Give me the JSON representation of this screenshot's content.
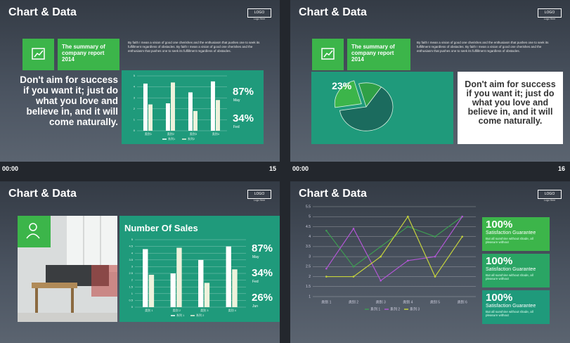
{
  "slides": [
    {
      "title": "Chart & Data",
      "logo": "LOGO",
      "logo_caption": "Logo Here",
      "summary": "The summary of company report 2014",
      "paragraph": "By faith I mean a vision of good one cherishes and the enthusiasm that pushes one to seek its fulfillment regardless of obstacles. By faith I mean a vision of good one cherishes and the enthusiasm that pushes one to seek its fulfillment regardless of obstacles.",
      "quote": "Don't aim for success if you want it; just do what you love and believe in, and it will come naturally.",
      "stats": [
        {
          "value": "87%",
          "label": "May"
        },
        {
          "value": "34%",
          "label": "Fed"
        }
      ],
      "chart": {
        "type": "bar",
        "categories": [
          "类别1",
          "类别2",
          "类别3",
          "类别4"
        ],
        "series": [
          {
            "name": "系列1",
            "color": "#ffffff",
            "values": [
              4.3,
              2.5,
              3.5,
              4.5
            ]
          },
          {
            "name": "系列2",
            "color": "#eef2dc",
            "values": [
              2.4,
              4.4,
              1.8,
              2.8
            ]
          }
        ],
        "ylim": [
          0,
          5
        ],
        "yticks": [
          0,
          1,
          2,
          3,
          4,
          5
        ]
      }
    },
    {
      "title": "Chart & Data",
      "logo": "LOGO",
      "logo_caption": "Logo Here",
      "summary": "The summary of company report 2014",
      "paragraph": "By faith I mean a vision of good one cherishes and the enthusiasm that pushes one to seek its fulfillment regardless of obstacles. By faith I mean a vision of good one cherishes and the enthusiasm that pushes one to seek its fulfillment regardless of obstacles.",
      "quote": "Don't aim for success if you want it; just do what you love and believe in, and it will come naturally.",
      "chart": {
        "type": "pie",
        "values": [
          63,
          23,
          14
        ],
        "value_labels": [
          null,
          "23%",
          null
        ],
        "colors": [
          "#1b6b5e",
          "#3cb54a",
          "#2fa046"
        ],
        "explode": 1
      }
    },
    {
      "title": "Chart & Data",
      "logo": "LOGO",
      "logo_caption": "Logo Here",
      "heading": "Number Of Sales",
      "stats": [
        {
          "value": "87%",
          "label": "May"
        },
        {
          "value": "34%",
          "label": "Fed"
        },
        {
          "value": "26%",
          "label": "Jun"
        }
      ],
      "chart": {
        "type": "bar",
        "categories": [
          "类别 1",
          "类别 2",
          "类别 3",
          "类别 4"
        ],
        "series": [
          {
            "name": "系列 1",
            "color": "#ffffff",
            "values": [
              4.3,
              2.5,
              3.5,
              4.5
            ]
          },
          {
            "name": "系列 2",
            "color": "#eef2dc",
            "values": [
              2.4,
              4.4,
              1.8,
              2.8
            ]
          }
        ],
        "ylim": [
          0,
          5
        ],
        "yticks": [
          0,
          0.5,
          1,
          1.5,
          2,
          2.5,
          3,
          3.5,
          4,
          4.5,
          5
        ]
      }
    },
    {
      "title": "Chart & Data",
      "logo": "LOGO",
      "logo_caption": "Logo Here",
      "boxes": [
        {
          "value": "100%",
          "label": "Satisfaction Guarantee",
          "text": "But all sunshine without shade, all pleasure without"
        },
        {
          "value": "100%",
          "label": "Satisfaction Guarantee",
          "text": "But all sunshine without shade, all pleasure without"
        },
        {
          "value": "100%",
          "label": "Satisfaction Guarantee",
          "text": "But all sunshine without shade, all pleasure without"
        }
      ],
      "chart": {
        "type": "line",
        "categories": [
          "类别 1",
          "类别 2",
          "类别 3",
          "类别 4",
          "类别 5",
          "类别 6"
        ],
        "series": [
          {
            "name": "系列 1",
            "color": "#3e9c52",
            "values": [
              4.3,
              2.5,
              3.5,
              4.5,
              4,
              5
            ]
          },
          {
            "name": "系列 2",
            "color": "#b356d6",
            "values": [
              2.4,
              4.4,
              1.8,
              2.8,
              3,
              5
            ]
          },
          {
            "name": "系列 3",
            "color": "#c6d43c",
            "values": [
              2,
              2,
              3,
              5,
              2,
              4
            ]
          }
        ],
        "ylim": [
          1,
          5.5
        ],
        "yticks": [
          1,
          1.5,
          2,
          2.5,
          3,
          3.5,
          4,
          4.5,
          5,
          5.5
        ]
      }
    }
  ],
  "status": [
    {
      "time": "00:00",
      "number": "15"
    },
    {
      "time": "00:00",
      "number": "16"
    }
  ]
}
